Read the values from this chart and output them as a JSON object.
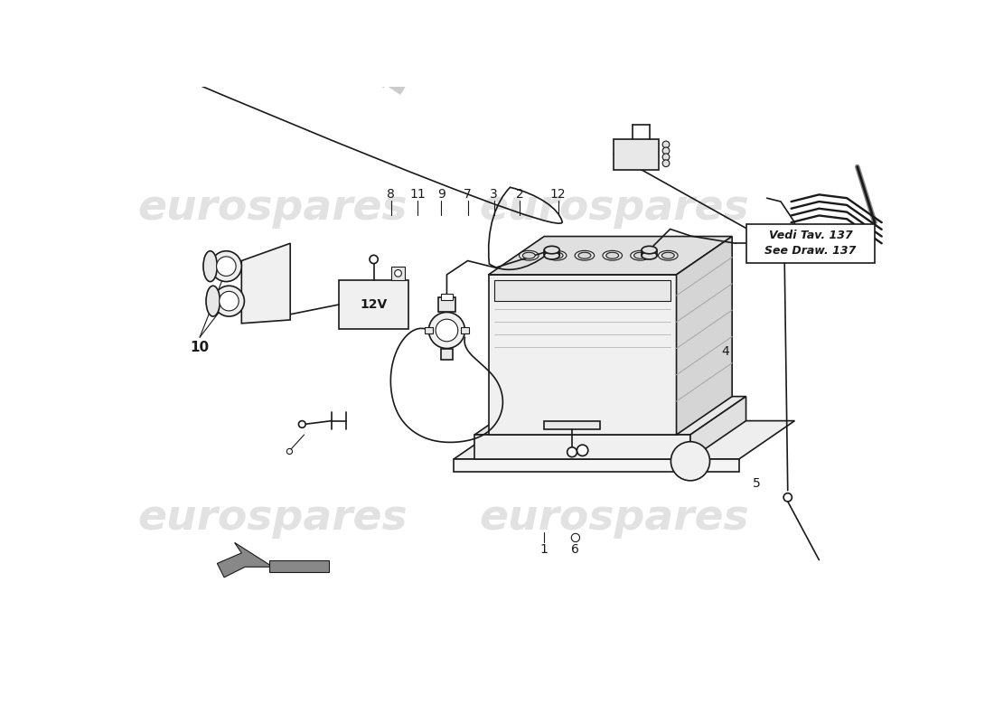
{
  "background_color": "#ffffff",
  "line_color": "#1a1a1a",
  "watermark_color": "#d0d0d0",
  "note_text1": "Vedi Tav. 137",
  "note_text2": "See Draw. 137",
  "label_12v": "12V",
  "watermark_text": "eurospares",
  "swoosh_color": "#cccccc",
  "lw_thin": 0.8,
  "lw_med": 1.2,
  "lw_thick": 2.0
}
